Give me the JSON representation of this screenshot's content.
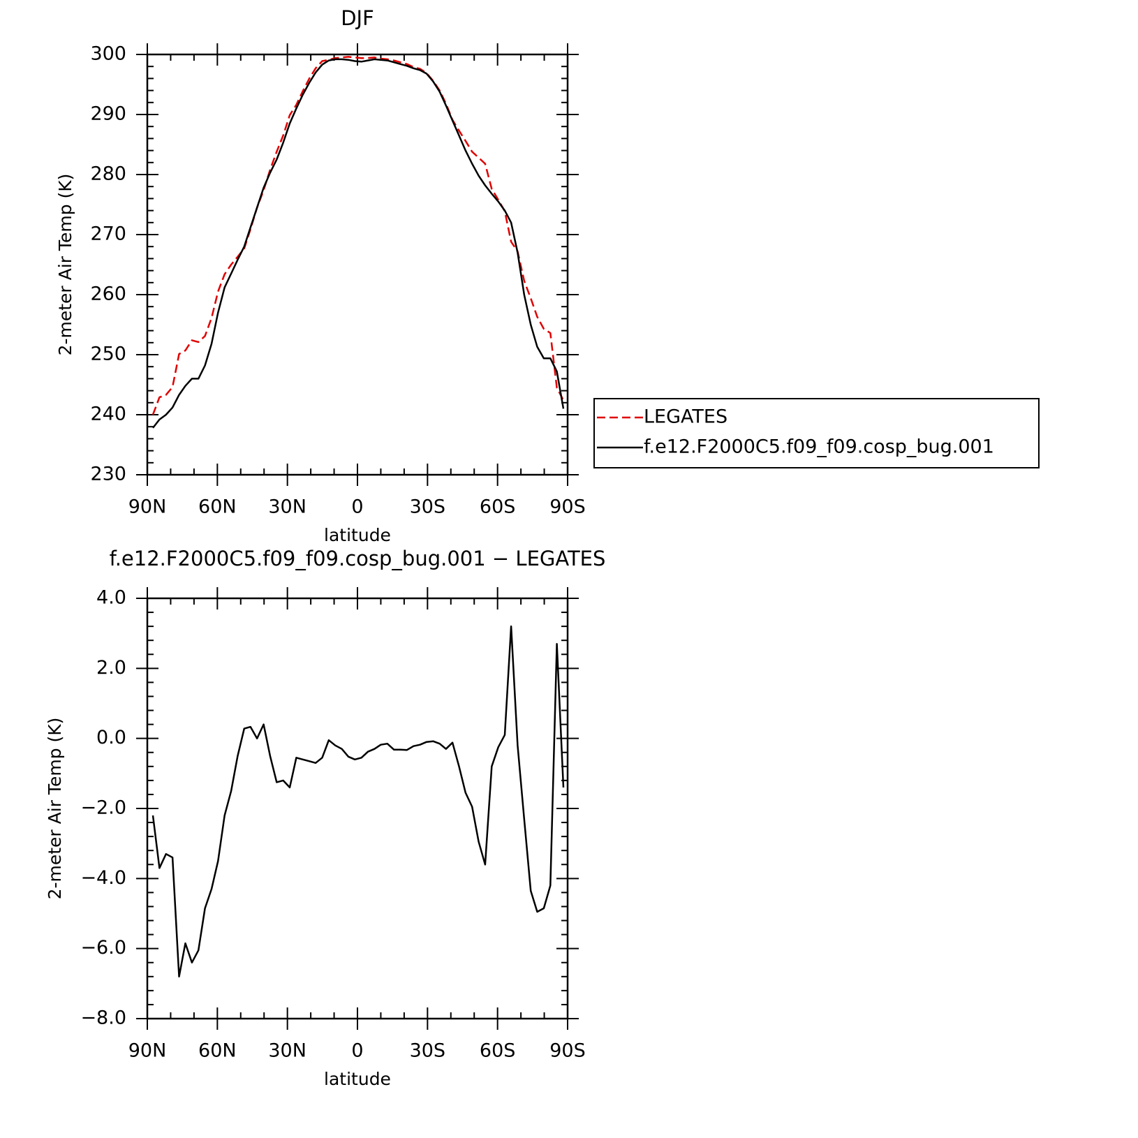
{
  "chart_data": [
    {
      "type": "line",
      "title": "DJF",
      "xlabel": "latitude",
      "ylabel": "2-meter Air Temp (K)",
      "x": [
        87.6,
        84.8,
        82.0,
        79.2,
        76.4,
        73.7,
        70.9,
        68.1,
        65.3,
        62.5,
        59.7,
        56.9,
        54.1,
        51.3,
        48.5,
        45.8,
        43.0,
        40.2,
        37.4,
        34.6,
        31.8,
        29.0,
        26.2,
        23.4,
        20.6,
        17.9,
        15.1,
        12.3,
        9.5,
        6.7,
        3.9,
        1.1,
        -1.7,
        -4.5,
        -7.3,
        -10.0,
        -12.8,
        -15.6,
        -18.4,
        -21.2,
        -24.0,
        -26.8,
        -29.6,
        -32.4,
        -35.2,
        -37.9,
        -40.7,
        -43.5,
        -46.3,
        -49.1,
        -51.9,
        -54.7,
        -57.5,
        -60.3,
        -63.1,
        -65.8,
        -68.6,
        -71.4,
        -74.2,
        -77.0,
        -79.8,
        -82.6,
        -85.4,
        -88.2
      ],
      "series": [
        {
          "name": "LEGATES",
          "color": "#e00000",
          "dashed": true,
          "values": [
            240.0,
            242.9,
            243.3,
            244.6,
            250.1,
            250.7,
            252.4,
            252.1,
            253.1,
            256.1,
            260.5,
            263.4,
            265.0,
            266.3,
            267.7,
            270.9,
            274.5,
            277.4,
            280.8,
            283.8,
            286.5,
            289.9,
            291.6,
            293.9,
            296.0,
            297.7,
            298.9,
            299.1,
            299.4,
            299.5,
            299.6,
            299.5,
            299.4,
            299.4,
            299.5,
            299.3,
            299.2,
            299.0,
            298.7,
            298.4,
            297.9,
            297.6,
            296.9,
            295.6,
            294.0,
            291.8,
            289.1,
            287.3,
            285.6,
            283.8,
            282.8,
            281.8,
            277.6,
            275.8,
            273.9,
            268.8,
            267.2,
            262.3,
            259.4,
            256.3,
            254.3,
            253.6,
            244.5,
            242.4
          ]
        },
        {
          "name": "f.e12.F2000C5.f09_f09.cosp_bug.001",
          "color": "#000000",
          "dashed": false,
          "values": [
            237.8,
            239.2,
            240.0,
            241.2,
            243.3,
            244.8,
            246.0,
            246.0,
            248.2,
            251.8,
            257.0,
            261.2,
            263.5,
            265.8,
            268.0,
            271.2,
            274.5,
            277.8,
            280.3,
            282.5,
            285.3,
            288.5,
            291.0,
            293.3,
            295.3,
            297.0,
            298.3,
            299.0,
            299.2,
            299.2,
            299.1,
            298.9,
            298.8,
            299.0,
            299.2,
            299.1,
            299.0,
            298.7,
            298.4,
            298.1,
            297.7,
            297.4,
            296.8,
            295.5,
            293.8,
            291.5,
            289.0,
            286.5,
            284.0,
            281.8,
            279.8,
            278.2,
            276.8,
            275.5,
            274.0,
            272.0,
            267.0,
            260.0,
            255.0,
            251.3,
            249.4,
            249.4,
            247.2,
            241.0
          ]
        }
      ],
      "xlim": [
        90,
        -90
      ],
      "xticks": [
        {
          "value": 90,
          "label": "90N"
        },
        {
          "value": 60,
          "label": "60N"
        },
        {
          "value": 30,
          "label": "30N"
        },
        0,
        {
          "value": -30,
          "label": "30S"
        },
        {
          "value": -60,
          "label": "60S"
        },
        {
          "value": -90,
          "label": "90S"
        }
      ],
      "ylim": [
        230,
        300
      ],
      "yticks": [
        230,
        240,
        250,
        260,
        270,
        280,
        290,
        300
      ],
      "legend": "right"
    },
    {
      "type": "line",
      "title": "f.e12.F2000C5.f09_f09.cosp_bug.001 − LEGATES",
      "xlabel": "latitude",
      "ylabel": "2-meter Air Temp (K)",
      "x": [
        87.6,
        84.8,
        82.0,
        79.2,
        76.4,
        73.7,
        70.9,
        68.1,
        65.3,
        62.5,
        59.7,
        56.9,
        54.1,
        51.3,
        48.5,
        45.8,
        43.0,
        40.2,
        37.4,
        34.6,
        31.8,
        29.0,
        26.2,
        23.4,
        20.6,
        17.9,
        15.1,
        12.3,
        9.5,
        6.7,
        3.9,
        1.1,
        -1.7,
        -4.5,
        -7.3,
        -10.0,
        -12.8,
        -15.6,
        -18.4,
        -21.2,
        -24.0,
        -26.8,
        -29.6,
        -32.4,
        -35.2,
        -37.9,
        -40.7,
        -43.5,
        -46.3,
        -49.1,
        -51.9,
        -54.7,
        -57.5,
        -60.3,
        -63.1,
        -65.8,
        -68.6,
        -71.4,
        -74.2,
        -77.0,
        -79.8,
        -82.6,
        -85.4,
        -88.2
      ],
      "values": [
        -2.2,
        -3.7,
        -3.3,
        -3.4,
        -6.8,
        -5.85,
        -6.4,
        -6.05,
        -4.85,
        -4.3,
        -3.5,
        -2.2,
        -1.5,
        -0.5,
        0.28,
        0.33,
        0,
        0.4,
        -0.5,
        -1.25,
        -1.2,
        -1.4,
        -0.55,
        -0.6,
        -0.65,
        -0.7,
        -0.55,
        -0.05,
        -0.2,
        -0.3,
        -0.52,
        -0.6,
        -0.55,
        -0.38,
        -0.3,
        -0.18,
        -0.15,
        -0.32,
        -0.32,
        -0.33,
        -0.22,
        -0.18,
        -0.1,
        -0.08,
        -0.15,
        -0.3,
        -0.12,
        -0.8,
        -1.55,
        -1.95,
        -2.95,
        -3.6,
        -0.8,
        -0.25,
        0.1,
        3.2,
        -0.2,
        -2.3,
        -4.35,
        -4.95,
        -4.85,
        -4.2,
        2.7,
        -1.4
      ],
      "color": "#000000",
      "xlim": [
        90,
        -90
      ],
      "xticks": [
        {
          "value": 90,
          "label": "90N"
        },
        {
          "value": 60,
          "label": "60N"
        },
        {
          "value": 30,
          "label": "30N"
        },
        0,
        {
          "value": -30,
          "label": "30S"
        },
        {
          "value": -60,
          "label": "60S"
        },
        {
          "value": -90,
          "label": "90S"
        }
      ],
      "ylim": [
        -8,
        4
      ],
      "yticks": [
        {
          "value": -8,
          "label": "−8.0"
        },
        {
          "value": -6,
          "label": "−6.0"
        },
        {
          "value": -4,
          "label": "−4.0"
        },
        {
          "value": -2,
          "label": "−2.0"
        },
        {
          "value": 0,
          "label": "0.0"
        },
        {
          "value": 2,
          "label": "2.0"
        },
        {
          "value": 4,
          "label": "4.0"
        }
      ]
    }
  ]
}
